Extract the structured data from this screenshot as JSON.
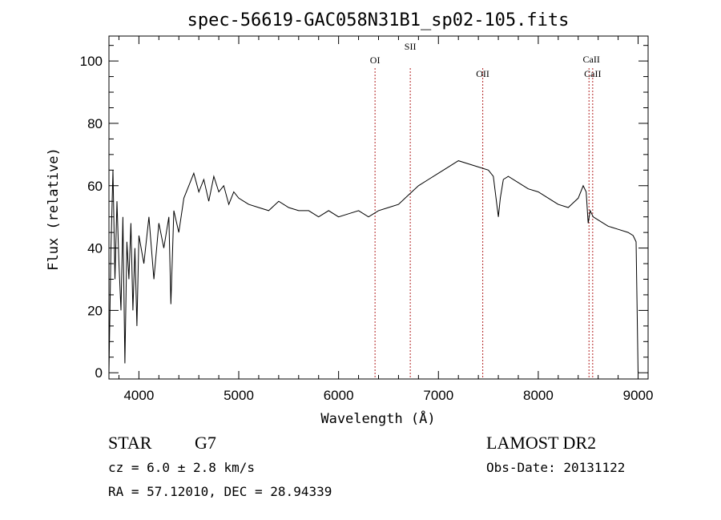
{
  "chart_data": {
    "type": "line",
    "title": "spec-56619-GAC058N31B1_sp02-105.fits",
    "xlabel": "Wavelength (Å)",
    "ylabel": "Flux (relative)",
    "xlim": [
      3700,
      9100
    ],
    "ylim": [
      -2,
      108
    ],
    "xticks": [
      4000,
      5000,
      6000,
      7000,
      8000,
      9000
    ],
    "yticks": [
      0,
      20,
      40,
      60,
      80,
      100
    ],
    "grid": false,
    "series": [
      {
        "x": [
          3700,
          3720,
          3740,
          3760,
          3780,
          3800,
          3820,
          3840,
          3860,
          3880,
          3900,
          3920,
          3940,
          3960,
          3980,
          4000,
          4050,
          4100,
          4150,
          4200,
          4250,
          4300,
          4320,
          4350,
          4400,
          4450,
          4500,
          4550,
          4600,
          4650,
          4700,
          4750,
          4800,
          4850,
          4900,
          4950,
          5000,
          5100,
          5200,
          5300,
          5400,
          5500,
          5600,
          5700,
          5800,
          5900,
          6000,
          6100,
          6200,
          6300,
          6400,
          6500,
          6600,
          6700,
          6800,
          6900,
          7000,
          7100,
          7200,
          7300,
          7400,
          7500,
          7550,
          7600,
          7620,
          7650,
          7700,
          7800,
          7900,
          8000,
          8100,
          8200,
          8300,
          8400,
          8450,
          8480,
          8500,
          8520,
          8550,
          8600,
          8700,
          8800,
          8900,
          8950,
          8980,
          9000
        ],
        "y": [
          0,
          40,
          65,
          30,
          55,
          35,
          20,
          50,
          3,
          42,
          30,
          48,
          20,
          40,
          15,
          44,
          35,
          50,
          30,
          48,
          40,
          50,
          22,
          52,
          45,
          56,
          60,
          64,
          58,
          62,
          55,
          63,
          58,
          60,
          54,
          58,
          56,
          54,
          53,
          52,
          55,
          53,
          52,
          52,
          50,
          52,
          50,
          51,
          52,
          50,
          52,
          53,
          54,
          57,
          60,
          62,
          64,
          66,
          68,
          67,
          66,
          65,
          63,
          50,
          56,
          62,
          63,
          61,
          59,
          58,
          56,
          54,
          53,
          56,
          60,
          58,
          48,
          52,
          50,
          49,
          47,
          46,
          45,
          44,
          42,
          0
        ]
      }
    ],
    "reference_lines": [
      {
        "label": "OI",
        "x": 6365
      },
      {
        "label": "SII",
        "x": 6718
      },
      {
        "label": "OII",
        "x": 7444
      },
      {
        "label": "CaII",
        "x": 8508
      },
      {
        "label": "CaII",
        "x": 8545
      }
    ]
  },
  "info": {
    "object_class": "STAR",
    "subclass": "G7",
    "cz": "cz = 6.0 ± 2.8 km/s",
    "coords": "RA =  57.12010, DEC =  28.94339",
    "survey": "LAMOST DR2",
    "obs_date": "Obs-Date: 20131122"
  }
}
